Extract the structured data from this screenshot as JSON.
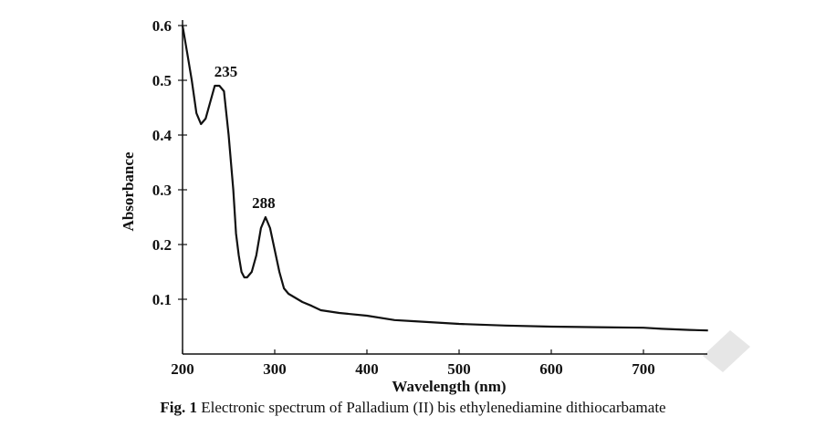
{
  "chart_data": {
    "type": "line",
    "title": "",
    "xlabel": "Wavelength (nm)",
    "ylabel": "Absorbance",
    "xlim": [
      200,
      770
    ],
    "ylim": [
      0,
      0.6
    ],
    "x_ticks": [
      200,
      300,
      400,
      500,
      600,
      700
    ],
    "x_tick_labels": [
      "200",
      "300",
      "400",
      "500",
      "600",
      "700"
    ],
    "y_ticks": [
      0.1,
      0.2,
      0.3,
      0.4,
      0.5,
      0.6
    ],
    "y_tick_labels": [
      "0.1",
      "0.2",
      "0.3",
      "0.4",
      "0.5",
      "0.6"
    ],
    "grid": false,
    "series": [
      {
        "name": "Pd(II) bis ethylenediamine dithiocarbamate",
        "x": [
          200,
          205,
          210,
          215,
          220,
          225,
          230,
          235,
          240,
          245,
          250,
          255,
          258,
          261,
          264,
          267,
          270,
          275,
          280,
          285,
          290,
          295,
          300,
          305,
          310,
          315,
          320,
          330,
          340,
          350,
          370,
          400,
          430,
          450,
          500,
          550,
          600,
          650,
          700,
          720,
          750,
          770
        ],
        "y": [
          0.6,
          0.55,
          0.5,
          0.44,
          0.42,
          0.43,
          0.46,
          0.49,
          0.49,
          0.48,
          0.4,
          0.3,
          0.22,
          0.18,
          0.15,
          0.14,
          0.14,
          0.15,
          0.18,
          0.23,
          0.25,
          0.23,
          0.19,
          0.15,
          0.12,
          0.11,
          0.105,
          0.095,
          0.088,
          0.08,
          0.075,
          0.07,
          0.062,
          0.06,
          0.055,
          0.052,
          0.05,
          0.049,
          0.048,
          0.046,
          0.044,
          0.043
        ]
      }
    ],
    "annotations": [
      {
        "text": "235",
        "x": 247,
        "y": 0.49
      },
      {
        "text": "288",
        "x": 288,
        "y": 0.25
      }
    ]
  },
  "caption": {
    "label": "Fig. 1",
    "text": " Electronic spectrum of Palladium (II) bis ethylenediamine dithiocarbamate"
  },
  "colors": {
    "line": "#111111",
    "axis": "#111111",
    "watermark": "#e6e6e6"
  }
}
